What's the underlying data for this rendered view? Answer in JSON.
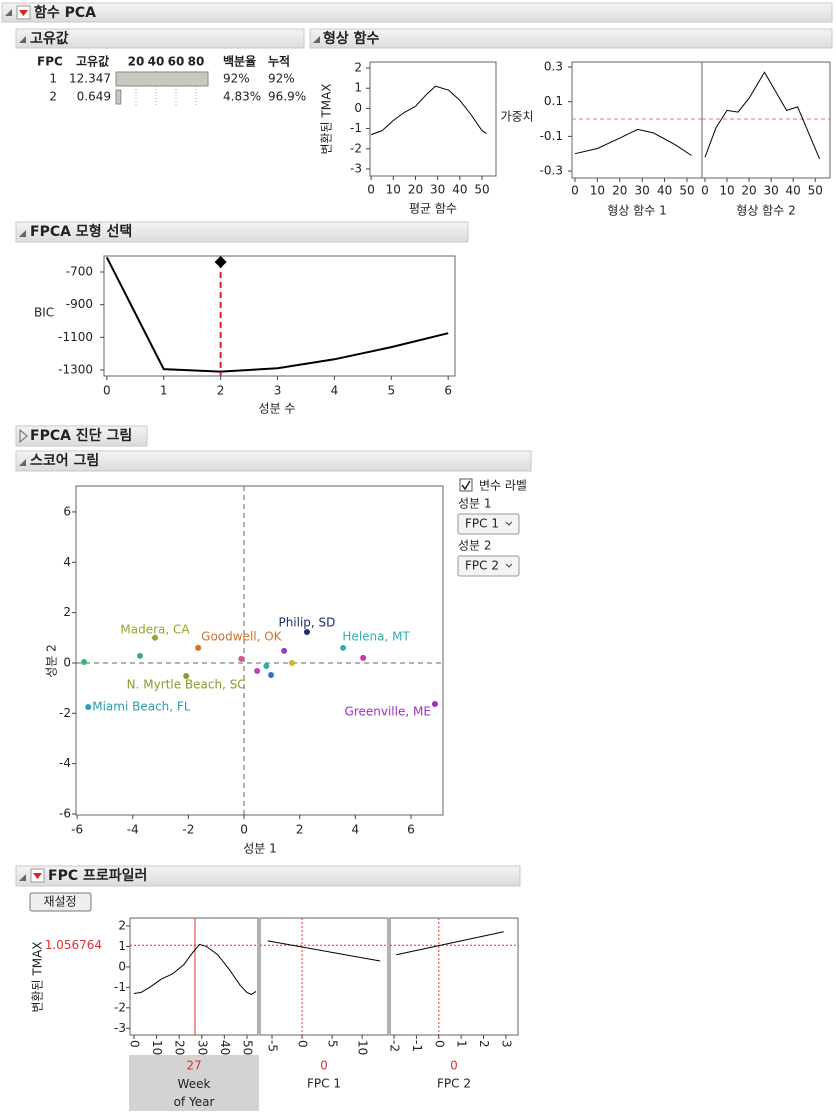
{
  "title": "함수 PCA",
  "eigen": {
    "title": "고유값",
    "columns": [
      "FPC",
      "고유값",
      "백분율",
      "누적"
    ],
    "bar_xlim": [
      0,
      100
    ],
    "bar_ticks": [
      20,
      40,
      60,
      80
    ],
    "fpc": [
      1,
      2
    ],
    "values": [
      12.347,
      0.649
    ],
    "percent": [
      92,
      4.83
    ],
    "percent_labels": [
      "92%",
      "4.83%"
    ],
    "cumulative": [
      "92%",
      "96.9%"
    ]
  },
  "shape_functions": {
    "title": "형상 함수",
    "y_label": "변환된 TMAX",
    "weight_label": "가중치",
    "mean": {
      "x_label": "평균 함수",
      "xlim": [
        -0.5,
        56.3
      ],
      "ylim": [
        -3.35,
        2.3
      ],
      "xticks": [
        0,
        10,
        20,
        30,
        40,
        50
      ],
      "yticks": [
        -3,
        -2,
        -1,
        0,
        1,
        2
      ],
      "x": [
        0,
        5,
        10,
        15,
        20,
        25,
        29,
        35,
        40,
        45,
        50,
        52
      ],
      "values": [
        -1.3,
        -1.1,
        -0.6,
        -0.2,
        0.1,
        0.7,
        1.1,
        0.9,
        0.4,
        -0.3,
        -1.1,
        -1.25
      ]
    },
    "shapes": {
      "xlim": [
        -1.34,
        56.7
      ],
      "ylim": [
        -0.34,
        0.329
      ],
      "xticks": [
        0,
        10,
        20,
        30,
        40,
        50
      ],
      "yticks": [
        -0.3,
        -0.1,
        0.1,
        0.3
      ],
      "series": [
        {
          "name": "형상 함수 1",
          "x": [
            0,
            10,
            20,
            28,
            35,
            45,
            52
          ],
          "values": [
            -0.2,
            -0.17,
            -0.11,
            -0.06,
            -0.08,
            -0.15,
            -0.21
          ]
        },
        {
          "name": "형상 함수 2",
          "x": [
            0,
            5,
            10,
            15,
            20,
            27,
            32,
            37,
            42,
            47,
            52
          ],
          "values": [
            -0.22,
            -0.05,
            0.05,
            0.04,
            0.12,
            0.27,
            0.16,
            0.05,
            0.07,
            -0.08,
            -0.23
          ]
        }
      ]
    }
  },
  "model_selection": {
    "title": "FPCA 모형 선택",
    "x_label": "성분 수",
    "y_label": "BIC",
    "xlim": [
      -0.05,
      6.12
    ],
    "ylim": [
      -1337,
      -602
    ],
    "xticks": [
      0,
      1,
      2,
      3,
      4,
      5,
      6
    ],
    "yticks": [
      -700,
      -900,
      -1100,
      -1300
    ],
    "x": [
      0,
      1,
      2,
      3,
      4,
      5,
      6
    ],
    "values": [
      -610,
      -1295,
      -1310,
      -1290,
      -1235,
      -1160,
      -1075
    ],
    "selected": 2
  },
  "diagnostics": {
    "title": "FPCA 진단 그림"
  },
  "score_plot": {
    "title": "스코어 그림",
    "x_label": "성분 1",
    "y_label": "성분 2",
    "xlim": [
      -6.04,
      7.15
    ],
    "ylim": [
      -6.04,
      7.03
    ],
    "xticks": [
      -6,
      -4,
      -2,
      0,
      2,
      4,
      6
    ],
    "yticks": [
      -6,
      -4,
      -2,
      0,
      2,
      4,
      6
    ],
    "x": [
      -5.75,
      -3.2,
      -3.74,
      -1.65,
      -2.08,
      -5.6,
      -0.1,
      0.47,
      0.8,
      0.97,
      1.44,
      1.72,
      2.26,
      3.56,
      4.28,
      6.86
    ],
    "y": [
      0.04,
      1.0,
      0.28,
      0.6,
      -0.52,
      -1.75,
      0.16,
      -0.32,
      -0.12,
      -0.48,
      0.48,
      0.0,
      1.23,
      0.6,
      0.2,
      -1.63
    ],
    "labels": [
      null,
      "Madera, CA",
      null,
      "Goodwell, OK",
      "N. Myrtle Beach, SC",
      "Miami Beach, FL",
      null,
      null,
      null,
      null,
      null,
      null,
      "Philip, SD",
      "Helena, MT",
      null,
      "Greenville, ME"
    ],
    "colors": [
      "#3cb371",
      "#9aa62a",
      "#3aa89a",
      "#d2722a",
      "#8a9a2a",
      "#2a9cb0",
      "#e0508a",
      "#c040c0",
      "#30b0a0",
      "#3a70c0",
      "#9040c0",
      "#d8b020",
      "#1a2e6a",
      "#30b0b0",
      "#d030b0",
      "#a030c0"
    ],
    "controls": {
      "checkbox": "변수 라벨",
      "x_select_label": "성분 1",
      "x_select": "FPC 1",
      "y_select_label": "성분 2",
      "y_select": "FPC 2"
    }
  },
  "profiler": {
    "title": "FPC 프로파일러",
    "reset": "재설정",
    "y_label": "변환된 TMAX",
    "current_y": 1.056764,
    "current_y_label": "1.056764",
    "ylim": [
      -3.33,
      2.39
    ],
    "yticks": [
      -3,
      -2,
      -1,
      0,
      1,
      2
    ],
    "factors": [
      {
        "name": "Week of Year",
        "current": 27,
        "xlim": [
          -1.77,
          54.9
        ],
        "xticks": [
          0,
          10,
          20,
          30,
          40,
          50
        ],
        "x": [
          0,
          3,
          7,
          12,
          17,
          22,
          26,
          29,
          32,
          37,
          42,
          47,
          50,
          52,
          54
        ],
        "values": [
          -1.3,
          -1.25,
          -1.0,
          -0.6,
          -0.35,
          0.1,
          0.7,
          1.1,
          1.0,
          0.6,
          -0.1,
          -0.9,
          -1.25,
          -1.35,
          -1.2
        ]
      },
      {
        "name": "FPC 1",
        "current": 0,
        "xlim": [
          -7.0,
          14.3
        ],
        "xticks": [
          -5,
          0,
          5,
          10
        ],
        "x": [
          -5.7,
          13
        ],
        "values": [
          1.27,
          0.29
        ]
      },
      {
        "name": "FPC 2",
        "current": 0,
        "xlim": [
          -2.18,
          3.54
        ],
        "xticks": [
          -2,
          -1,
          0,
          1,
          2,
          3
        ],
        "x": [
          -1.9,
          2.9
        ],
        "values": [
          0.59,
          1.72
        ]
      }
    ]
  }
}
